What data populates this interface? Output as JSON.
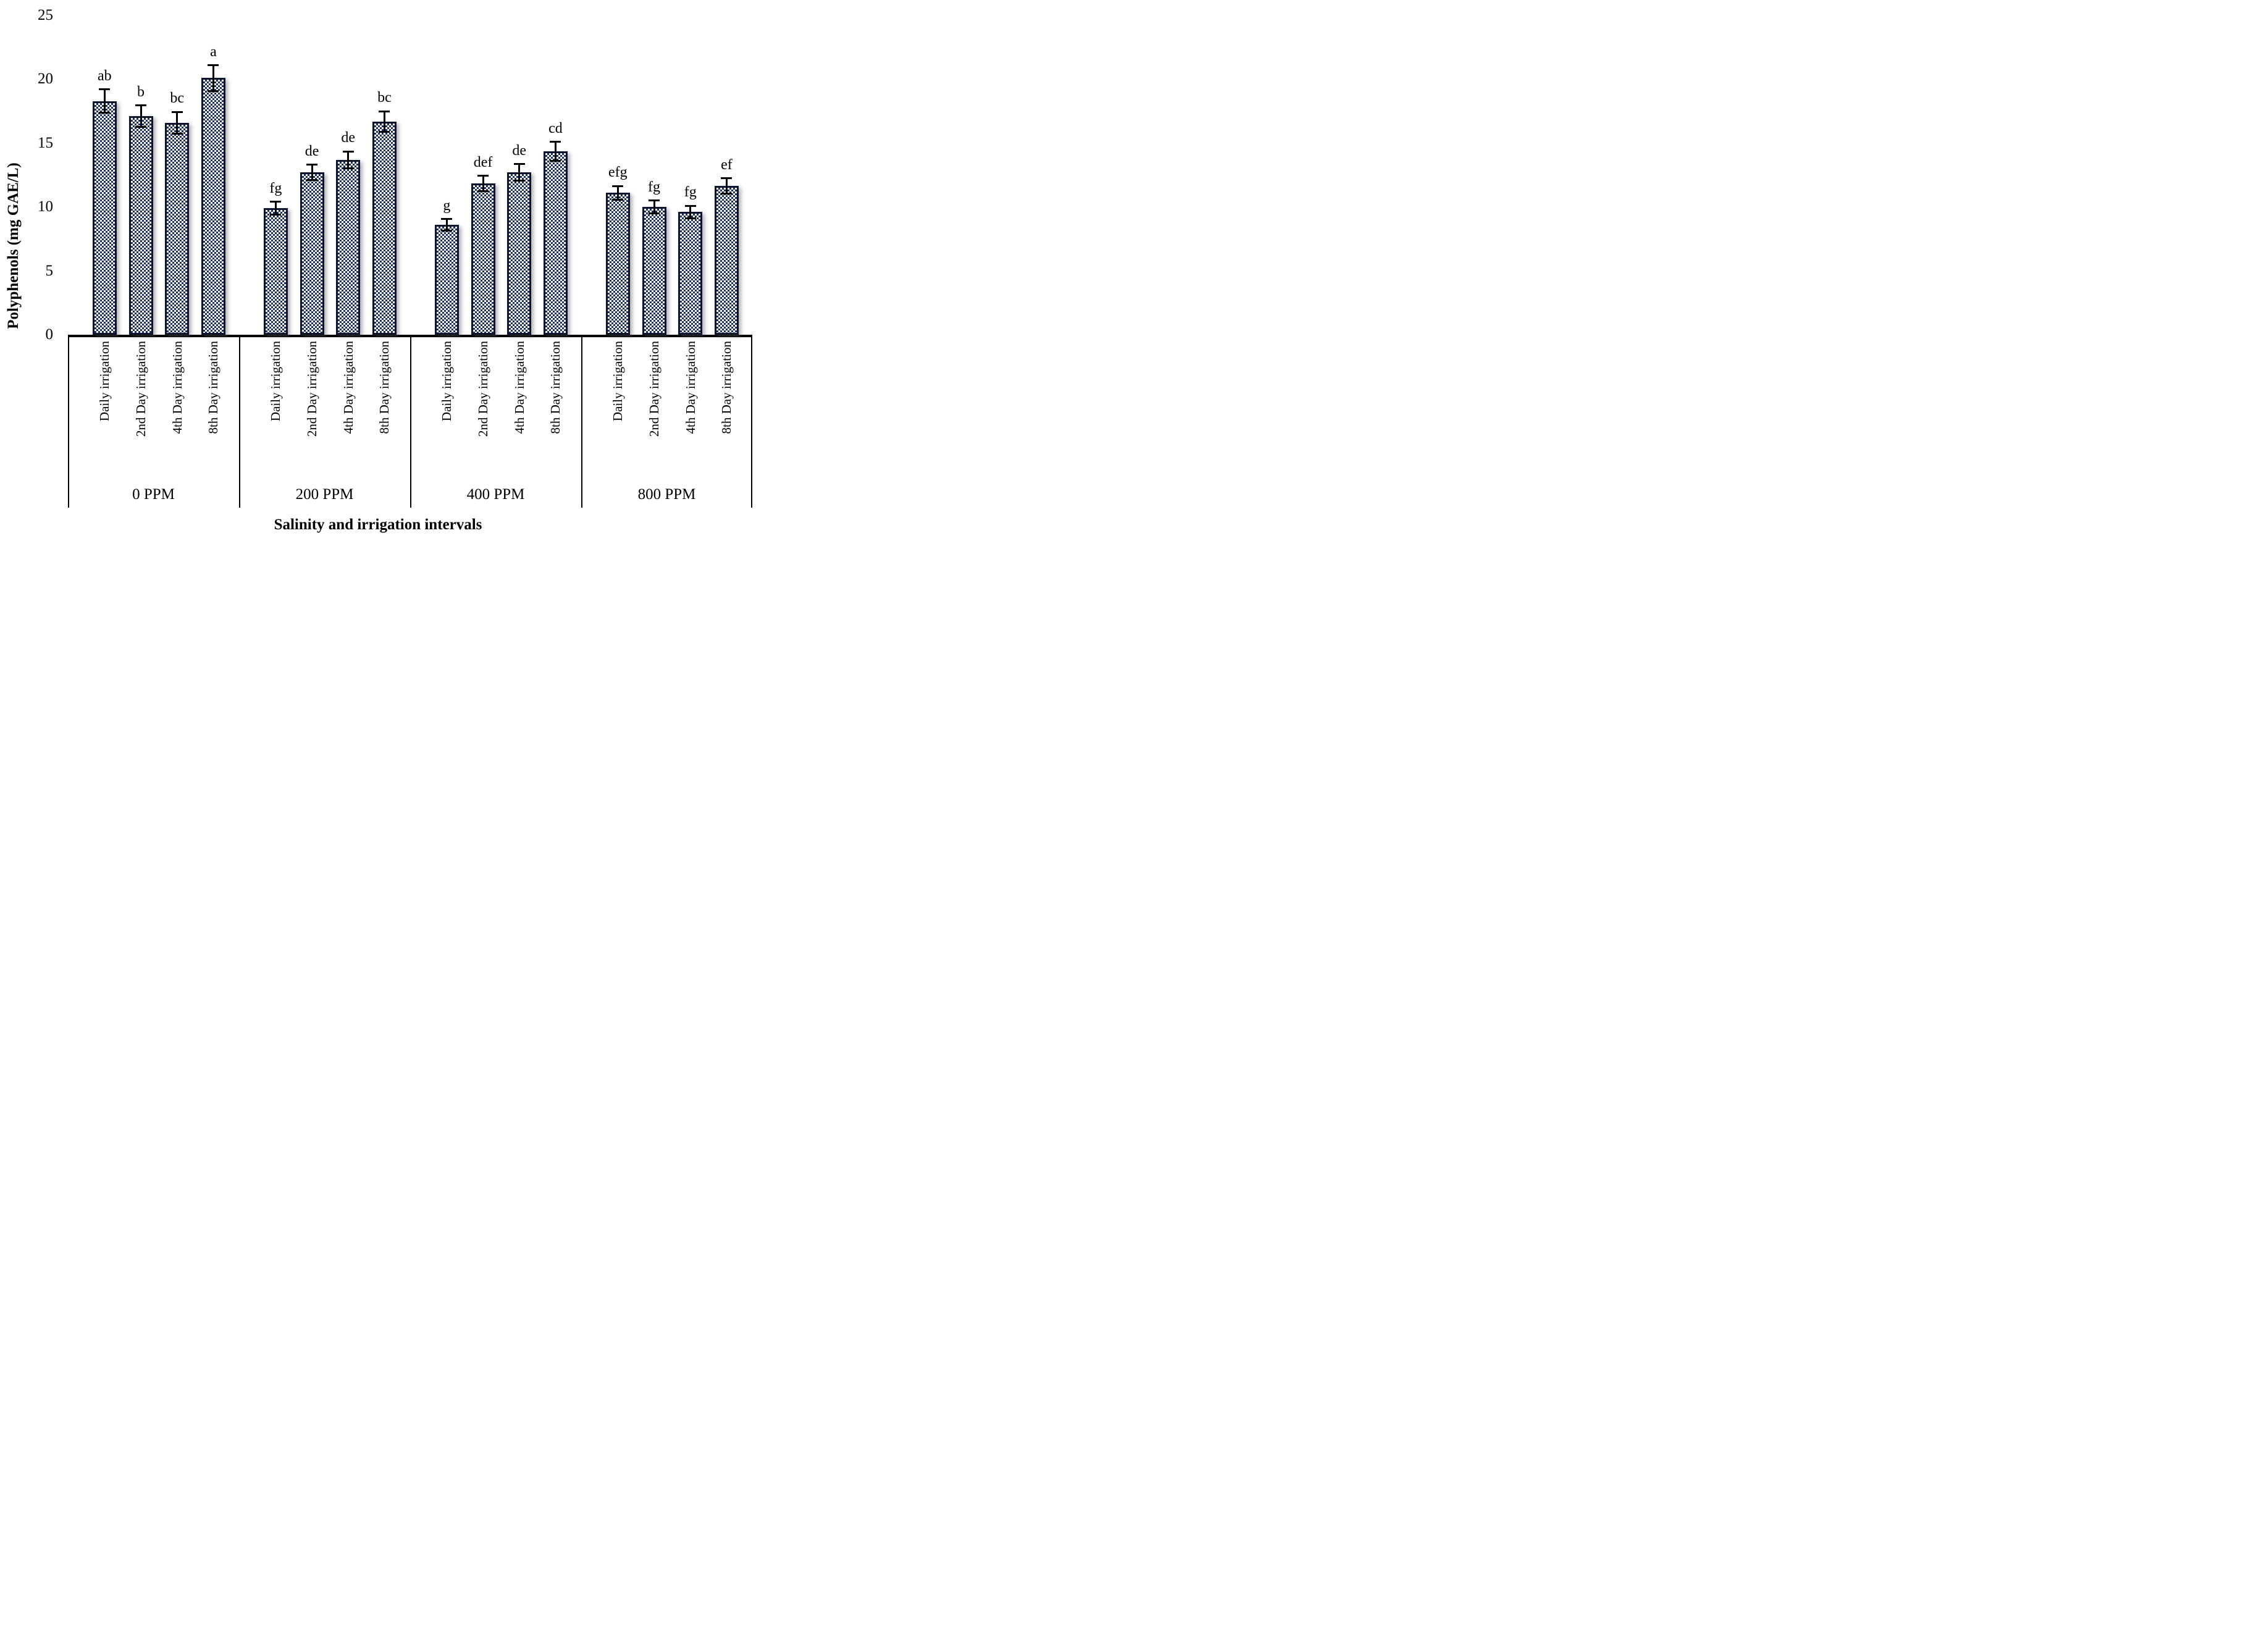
{
  "figure": {
    "background": "#ffffff"
  },
  "chart_data": {
    "type": "bar",
    "title": "",
    "ylabel": "Polyphenols (mg GAE/L)",
    "xlabel": "Salinity and irrigation intervals",
    "ylim": [
      0,
      25
    ],
    "yticks": [
      "0",
      "5",
      "10",
      "15",
      "20",
      "25"
    ],
    "grid": false,
    "legend": "none",
    "bar_pattern": "small navy checkerboard on white, dark navy border, error bars with caps, significance letters above bars",
    "colors": {
      "pattern_fill": "#1d3160",
      "bar_border": "#0d152e",
      "error_bar": "#000000",
      "axis_line": "#000000",
      "text": "#000000",
      "background": "#ffffff"
    },
    "groups": [
      {
        "label": "0 PPM",
        "bars": [
          {
            "category": "Daily irrigation",
            "value": 18.3,
            "error": 0.9,
            "letter": "ab"
          },
          {
            "category": "2nd Day irrigation",
            "value": 17.1,
            "error": 0.85,
            "letter": "b"
          },
          {
            "category": "4th Day irrigation",
            "value": 16.6,
            "error": 0.85,
            "letter": "bc"
          },
          {
            "category": "8th Day irrigation",
            "value": 20.1,
            "error": 1.0,
            "letter": "a"
          }
        ]
      },
      {
        "label": "200 PPM",
        "bars": [
          {
            "category": "Daily irrigation",
            "value": 9.9,
            "error": 0.5,
            "letter": "fg"
          },
          {
            "category": "2nd Day irrigation",
            "value": 12.7,
            "error": 0.6,
            "letter": "de"
          },
          {
            "category": "4th Day irrigation",
            "value": 13.7,
            "error": 0.65,
            "letter": "de"
          },
          {
            "category": "8th Day irrigation",
            "value": 16.7,
            "error": 0.8,
            "letter": "bc"
          }
        ]
      },
      {
        "label": "400 PPM",
        "bars": [
          {
            "category": "Daily irrigation",
            "value": 8.6,
            "error": 0.45,
            "letter": "g"
          },
          {
            "category": "2nd Day irrigation",
            "value": 11.85,
            "error": 0.6,
            "letter": "def"
          },
          {
            "category": "4th Day irrigation",
            "value": 12.7,
            "error": 0.65,
            "letter": "de"
          },
          {
            "category": "8th Day irrigation",
            "value": 14.35,
            "error": 0.75,
            "letter": "cd"
          }
        ]
      },
      {
        "label": "800 PPM",
        "bars": [
          {
            "category": "Daily irrigation",
            "value": 11.1,
            "error": 0.55,
            "letter": "efg"
          },
          {
            "category": "2nd Day irrigation",
            "value": 10.0,
            "error": 0.5,
            "letter": "fg"
          },
          {
            "category": "4th Day irrigation",
            "value": 9.6,
            "error": 0.5,
            "letter": "fg"
          },
          {
            "category": "8th Day irrigation",
            "value": 11.65,
            "error": 0.6,
            "letter": "ef"
          }
        ]
      }
    ]
  }
}
